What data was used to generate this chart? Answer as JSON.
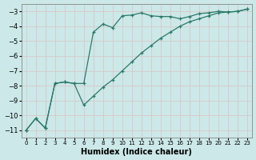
{
  "xlabel": "Humidex (Indice chaleur)",
  "background_color": "#cce8e8",
  "grid_color": "#c4dcdc",
  "line_color": "#2a7a6a",
  "xlim": [
    -0.5,
    23.5
  ],
  "ylim": [
    -11.5,
    -2.5
  ],
  "yticks": [
    -11,
    -10,
    -9,
    -8,
    -7,
    -6,
    -5,
    -4,
    -3
  ],
  "xticks": [
    0,
    1,
    2,
    3,
    4,
    5,
    6,
    7,
    8,
    9,
    10,
    11,
    12,
    13,
    14,
    15,
    16,
    17,
    18,
    19,
    20,
    21,
    22,
    23
  ],
  "curve1_x": [
    0,
    1,
    2,
    3,
    4,
    5,
    6,
    7,
    8,
    9,
    10,
    11,
    12,
    13,
    14,
    15,
    16,
    17,
    18,
    19,
    20,
    21,
    22,
    23
  ],
  "curve1_y": [
    -11.0,
    -10.2,
    -10.85,
    -7.85,
    -7.75,
    -7.85,
    -7.85,
    -4.4,
    -3.85,
    -4.1,
    -3.3,
    -3.25,
    -3.1,
    -3.3,
    -3.35,
    -3.35,
    -3.5,
    -3.35,
    -3.15,
    -3.1,
    -3.0,
    -3.05,
    -3.0,
    -2.85
  ],
  "curve2_x": [
    0,
    1,
    2,
    3,
    4,
    5,
    6,
    7,
    8,
    9,
    10,
    11,
    12,
    13,
    14,
    15,
    16,
    17,
    18,
    19,
    20,
    21,
    22,
    23
  ],
  "curve2_y": [
    -11.0,
    -10.2,
    -10.85,
    -7.85,
    -7.75,
    -7.85,
    -9.3,
    -8.7,
    -8.1,
    -7.6,
    -7.0,
    -6.4,
    -5.8,
    -5.3,
    -4.8,
    -4.4,
    -4.0,
    -3.7,
    -3.5,
    -3.3,
    -3.1,
    -3.05,
    -3.0,
    -2.85
  ]
}
